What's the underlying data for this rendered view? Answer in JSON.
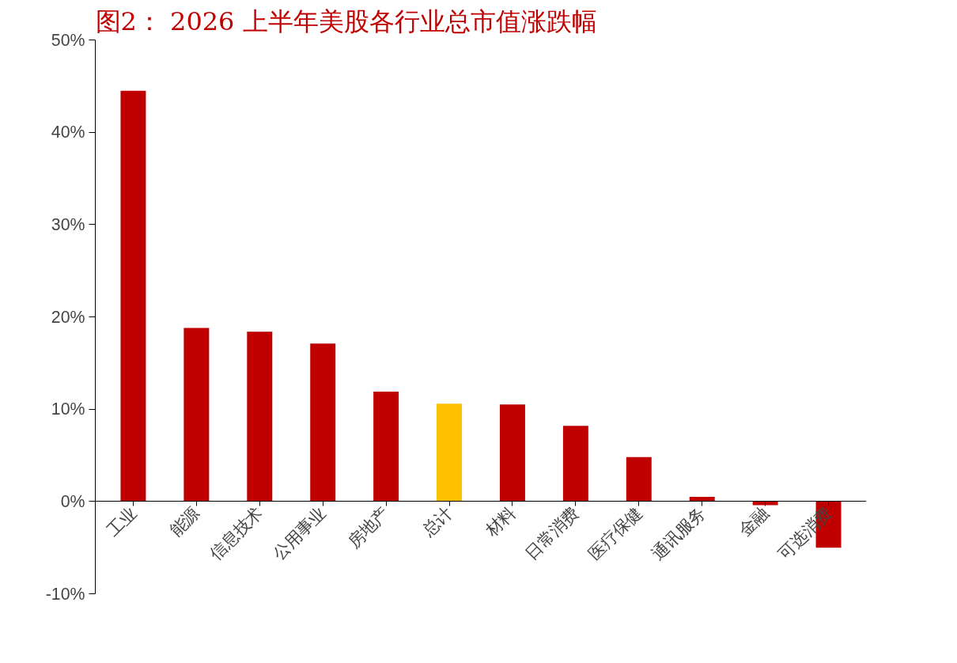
{
  "chart_data": {
    "type": "bar",
    "title": "图2： 2026 上半年美股各行业总市值涨跌幅",
    "categories": [
      "工业",
      "能源",
      "信息技术",
      "公用事业",
      "房地产",
      "总计",
      "材料",
      "日常消费",
      "医疗保健",
      "通讯服务",
      "金融",
      "可选消费"
    ],
    "values": [
      44.5,
      18.8,
      18.4,
      17.1,
      11.9,
      10.6,
      10.5,
      8.2,
      4.8,
      0.5,
      -0.4,
      -5.0
    ],
    "colors": [
      "#c00000",
      "#c00000",
      "#c00000",
      "#c00000",
      "#c00000",
      "#ffc000",
      "#c00000",
      "#c00000",
      "#c00000",
      "#c00000",
      "#c00000",
      "#c00000"
    ],
    "ylim": [
      -10,
      50
    ],
    "yticks": [
      {
        "value": -10,
        "label": "-10%"
      },
      {
        "value": 0,
        "label": "0%"
      },
      {
        "value": 10,
        "label": "10%"
      },
      {
        "value": 20,
        "label": "20%"
      },
      {
        "value": 30,
        "label": "30%"
      },
      {
        "value": 40,
        "label": "40%"
      },
      {
        "value": 50,
        "label": "50%"
      }
    ],
    "grid": false
  }
}
